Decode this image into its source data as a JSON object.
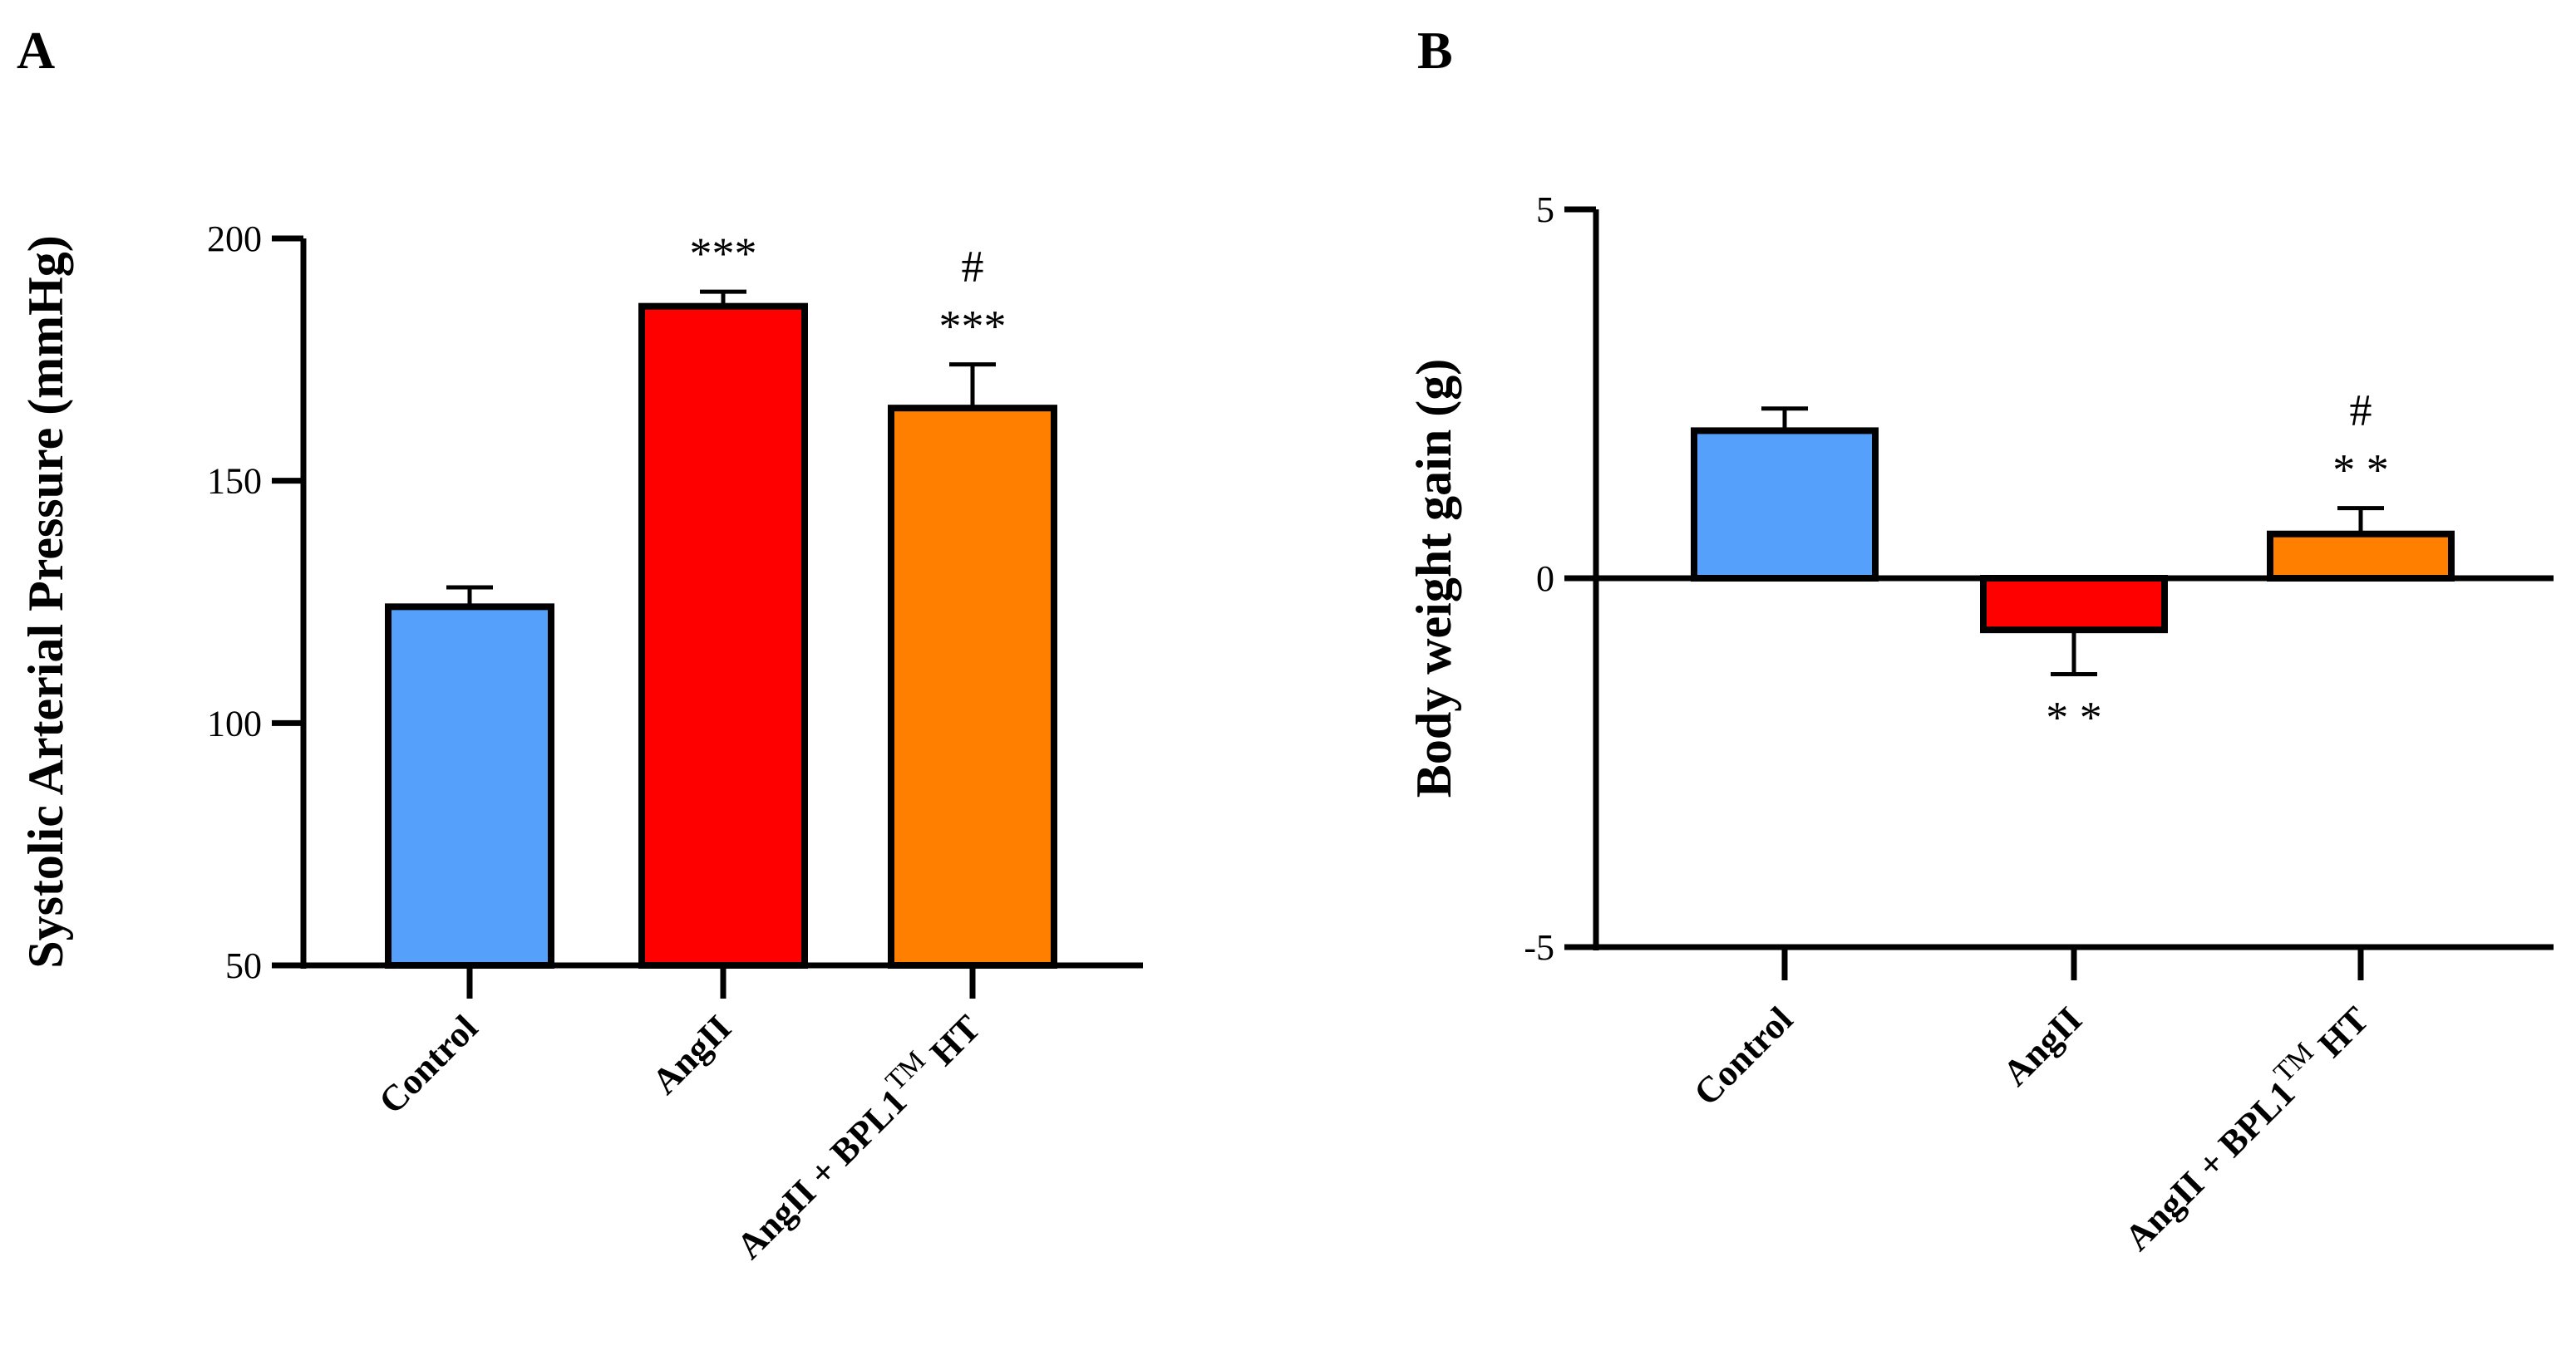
{
  "chart_data": [
    {
      "type": "bar",
      "panel_label": "A",
      "title": "",
      "xlabel": "",
      "ylabel": "Systolic Arterial Pressure (mmHg)",
      "ylim": [
        50,
        200
      ],
      "yticks": [
        50,
        100,
        150,
        200
      ],
      "categories": [
        "Control",
        "AngII",
        "AngII + BPL1"
      ],
      "category_superscript": [
        "",
        "",
        "TM"
      ],
      "category_suffix": [
        "",
        "",
        " HT"
      ],
      "values": [
        124,
        186,
        165
      ],
      "errors": [
        4,
        3,
        9
      ],
      "colors": [
        "#55a0fb",
        "#ff0000",
        "#ff8000"
      ],
      "annotations_top": [
        [],
        [
          "***"
        ],
        [
          "***",
          "#"
        ]
      ],
      "annotations_bottom": [
        [],
        [],
        []
      ]
    },
    {
      "type": "bar",
      "panel_label": "B",
      "title": "",
      "xlabel": "",
      "ylabel": "Body weight gain (g)",
      "ylim": [
        -5,
        5
      ],
      "yticks": [
        -5,
        0,
        5
      ],
      "categories": [
        "Control",
        "AngII",
        "AngII + BPL1"
      ],
      "category_superscript": [
        "",
        "",
        "TM"
      ],
      "category_suffix": [
        "",
        "",
        " HT"
      ],
      "values": [
        2.0,
        -0.7,
        0.6
      ],
      "errors": [
        0.3,
        0.6,
        0.35
      ],
      "colors": [
        "#55a0fb",
        "#ff0000",
        "#ff8000"
      ],
      "annotations_top": [
        [],
        [],
        [
          "* *",
          "#"
        ]
      ],
      "annotations_bottom": [
        [],
        [
          "* *"
        ],
        []
      ]
    }
  ]
}
